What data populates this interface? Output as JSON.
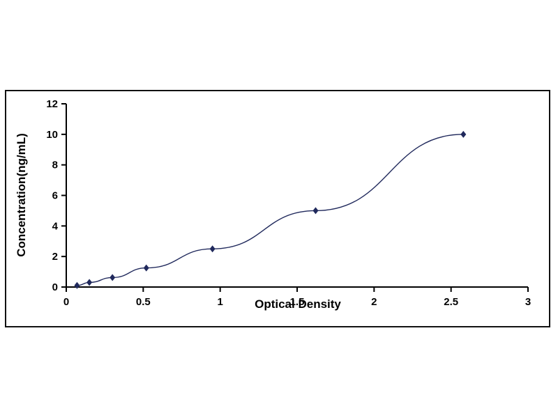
{
  "chart_data": {
    "type": "line",
    "title": "",
    "xlabel": "Optical Density",
    "ylabel": "Concentration(ng/mL)",
    "x": [
      0.07,
      0.15,
      0.3,
      0.52,
      0.95,
      1.62,
      2.58
    ],
    "y": [
      0.1,
      0.3,
      0.62,
      1.25,
      2.5,
      5.0,
      10.0
    ],
    "xlim": [
      0,
      3
    ],
    "ylim": [
      0,
      12
    ],
    "x_tick_labels": [
      "0",
      "0.5",
      "1",
      "1.5",
      "2",
      "2.5",
      "3"
    ],
    "x_tick_values": [
      0,
      0.5,
      1,
      1.5,
      2,
      2.5,
      3
    ],
    "y_tick_labels": [
      "0",
      "2",
      "4",
      "6",
      "8",
      "10",
      "12"
    ],
    "y_tick_values": [
      0,
      2,
      4,
      6,
      8,
      10,
      12
    ],
    "series_color": "#20295c",
    "axis_color": "#000000",
    "marker": "diamond",
    "grid": false,
    "legend": "none"
  }
}
